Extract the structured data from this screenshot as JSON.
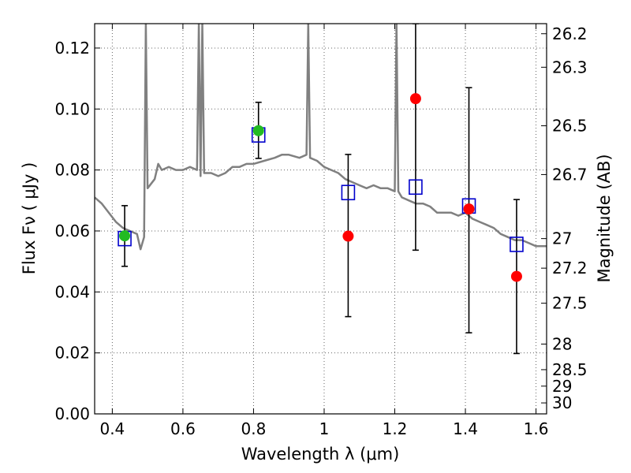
{
  "chart_data": {
    "type": "scatter",
    "title": "",
    "xlabel": "Wavelength  λ (μm)",
    "ylabel": "Flux  Fν ( μJy )",
    "y2label": "Magnitude (AB)",
    "xlim": [
      0.35,
      1.63
    ],
    "ylim": [
      0.0,
      0.128
    ],
    "grid": true,
    "x_ticks": [
      0.4,
      0.6,
      0.8,
      1.0,
      1.2,
      1.4,
      1.6
    ],
    "x_tick_labels": [
      "0.4",
      "0.6",
      "0.8",
      "1",
      "1.2",
      "1.4",
      "1.6"
    ],
    "y_ticks": [
      0.0,
      0.02,
      0.04,
      0.06,
      0.08,
      0.1,
      0.12
    ],
    "y_tick_labels": [
      "0.00",
      "0.02",
      "0.04",
      "0.06",
      "0.08",
      "0.10",
      "0.12"
    ],
    "y2_ticks": [
      {
        "flux": 0.1247,
        "label": "26.2"
      },
      {
        "flux": 0.1137,
        "label": "26.3"
      },
      {
        "flux": 0.0945,
        "label": "26.5"
      },
      {
        "flux": 0.0785,
        "label": "26.7"
      },
      {
        "flux": 0.0575,
        "label": "27"
      },
      {
        "flux": 0.0478,
        "label": "27.2"
      },
      {
        "flux": 0.0363,
        "label": "27.5"
      },
      {
        "flux": 0.0229,
        "label": "28"
      },
      {
        "flux": 0.0145,
        "label": "28.5"
      },
      {
        "flux": 0.0091,
        "label": "29"
      },
      {
        "flux": 0.0036,
        "label": "30"
      }
    ],
    "series": [
      {
        "type": "errorbar",
        "color": "#000000",
        "points": [
          {
            "x": 0.435,
            "low": 0.0484,
            "high": 0.0683
          },
          {
            "x": 0.814,
            "low": 0.0838,
            "high": 0.1022
          },
          {
            "x": 1.068,
            "low": 0.0319,
            "high": 0.0851
          },
          {
            "x": 1.259,
            "low": 0.0537,
            "high": 0.128
          },
          {
            "x": 1.41,
            "low": 0.0266,
            "high": 0.107
          },
          {
            "x": 1.545,
            "low": 0.0198,
            "high": 0.0703
          }
        ]
      },
      {
        "type": "model_spectrum",
        "color": "#808080",
        "points": [
          [
            0.35,
            0.071
          ],
          [
            0.37,
            0.069
          ],
          [
            0.39,
            0.066
          ],
          [
            0.41,
            0.063
          ],
          [
            0.43,
            0.061
          ],
          [
            0.45,
            0.06
          ],
          [
            0.47,
            0.059
          ],
          [
            0.48,
            0.054
          ],
          [
            0.49,
            0.058
          ],
          [
            0.495,
            0.128
          ],
          [
            0.5,
            0.074
          ],
          [
            0.52,
            0.077
          ],
          [
            0.53,
            0.082
          ],
          [
            0.54,
            0.08
          ],
          [
            0.56,
            0.081
          ],
          [
            0.58,
            0.08
          ],
          [
            0.6,
            0.08
          ],
          [
            0.62,
            0.081
          ],
          [
            0.64,
            0.08
          ],
          [
            0.645,
            0.128
          ],
          [
            0.65,
            0.078
          ],
          [
            0.655,
            0.128
          ],
          [
            0.66,
            0.079
          ],
          [
            0.68,
            0.079
          ],
          [
            0.7,
            0.078
          ],
          [
            0.72,
            0.079
          ],
          [
            0.74,
            0.081
          ],
          [
            0.76,
            0.081
          ],
          [
            0.78,
            0.082
          ],
          [
            0.8,
            0.082
          ],
          [
            0.83,
            0.083
          ],
          [
            0.86,
            0.084
          ],
          [
            0.88,
            0.085
          ],
          [
            0.9,
            0.085
          ],
          [
            0.93,
            0.084
          ],
          [
            0.95,
            0.085
          ],
          [
            0.955,
            0.128
          ],
          [
            0.96,
            0.084
          ],
          [
            0.98,
            0.083
          ],
          [
            1.0,
            0.081
          ],
          [
            1.02,
            0.08
          ],
          [
            1.04,
            0.079
          ],
          [
            1.06,
            0.077
          ],
          [
            1.08,
            0.076
          ],
          [
            1.1,
            0.075
          ],
          [
            1.12,
            0.074
          ],
          [
            1.14,
            0.075
          ],
          [
            1.16,
            0.074
          ],
          [
            1.18,
            0.074
          ],
          [
            1.2,
            0.073
          ],
          [
            1.205,
            0.128
          ],
          [
            1.21,
            0.073
          ],
          [
            1.22,
            0.071
          ],
          [
            1.24,
            0.07
          ],
          [
            1.26,
            0.069
          ],
          [
            1.28,
            0.069
          ],
          [
            1.3,
            0.068
          ],
          [
            1.32,
            0.066
          ],
          [
            1.34,
            0.066
          ],
          [
            1.36,
            0.066
          ],
          [
            1.38,
            0.065
          ],
          [
            1.4,
            0.066
          ],
          [
            1.42,
            0.064
          ],
          [
            1.44,
            0.063
          ],
          [
            1.46,
            0.062
          ],
          [
            1.48,
            0.061
          ],
          [
            1.5,
            0.059
          ],
          [
            1.52,
            0.058
          ],
          [
            1.54,
            0.057
          ],
          [
            1.56,
            0.057
          ],
          [
            1.58,
            0.056
          ],
          [
            1.6,
            0.055
          ],
          [
            1.63,
            0.055
          ]
        ]
      },
      {
        "type": "open_square",
        "color": "#0000cc",
        "points": [
          [
            0.435,
            0.0575
          ],
          [
            0.814,
            0.0915
          ],
          [
            1.068,
            0.0726
          ],
          [
            1.259,
            0.0744
          ],
          [
            1.41,
            0.0682
          ],
          [
            1.545,
            0.0556
          ]
        ]
      },
      {
        "type": "filled_circle",
        "color": "#22bb22",
        "points": [
          [
            0.435,
            0.0584
          ],
          [
            0.814,
            0.0929
          ]
        ]
      },
      {
        "type": "filled_circle",
        "color": "#ff0000",
        "points": [
          [
            1.068,
            0.0583
          ],
          [
            1.259,
            0.1034
          ],
          [
            1.41,
            0.0672
          ],
          [
            1.545,
            0.0451
          ]
        ]
      }
    ]
  }
}
